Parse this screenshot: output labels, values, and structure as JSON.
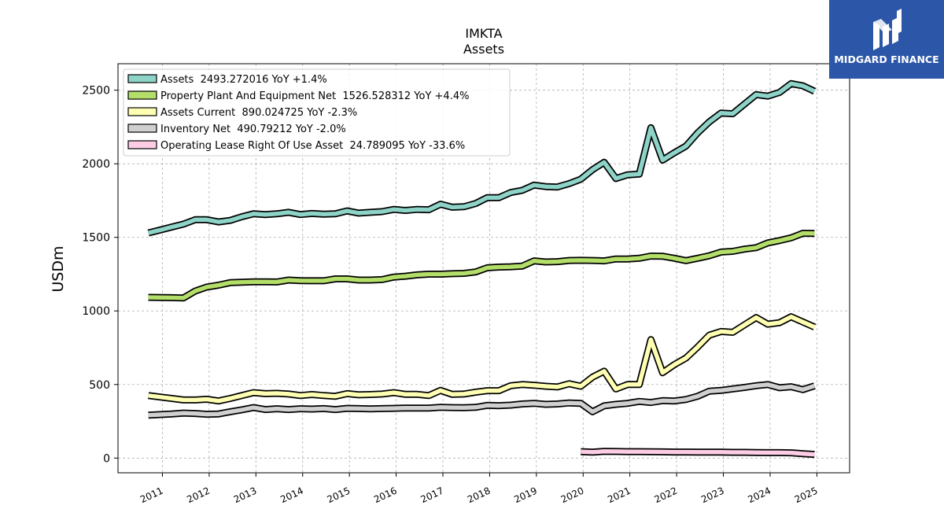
{
  "chart_data": {
    "type": "line",
    "title": "IMKTA",
    "subtitle": "Assets",
    "ylabel": "USDm",
    "xlabel": "",
    "ylim": [
      -100,
      2680
    ],
    "xlim": [
      2010.05,
      2025.7
    ],
    "yticks": [
      0,
      500,
      1000,
      1500,
      2000,
      2500
    ],
    "xticks": [
      "2011",
      "2012",
      "2013",
      "2014",
      "2015",
      "2016",
      "2017",
      "2018",
      "2019",
      "2020",
      "2021",
      "2022",
      "2023",
      "2024",
      "2025"
    ],
    "grid": true,
    "legend_position": "top-left",
    "series": [
      {
        "name": "Assets",
        "legend": "Assets  2493.272016 YoY +1.4%",
        "color": "#8dd3c7",
        "points": [
          [
            2010.7,
            1530
          ],
          [
            2010.95,
            1550
          ],
          [
            2011.2,
            1570
          ],
          [
            2011.45,
            1590
          ],
          [
            2011.7,
            1620
          ],
          [
            2011.95,
            1620
          ],
          [
            2012.2,
            1605
          ],
          [
            2012.45,
            1615
          ],
          [
            2012.7,
            1640
          ],
          [
            2012.95,
            1660
          ],
          [
            2013.2,
            1655
          ],
          [
            2013.45,
            1660
          ],
          [
            2013.7,
            1670
          ],
          [
            2013.95,
            1655
          ],
          [
            2014.2,
            1662
          ],
          [
            2014.45,
            1658
          ],
          [
            2014.7,
            1660
          ],
          [
            2014.95,
            1680
          ],
          [
            2015.2,
            1665
          ],
          [
            2015.45,
            1670
          ],
          [
            2015.7,
            1675
          ],
          [
            2015.95,
            1690
          ],
          [
            2016.2,
            1683
          ],
          [
            2016.45,
            1690
          ],
          [
            2016.7,
            1688
          ],
          [
            2016.95,
            1725
          ],
          [
            2017.2,
            1705
          ],
          [
            2017.45,
            1708
          ],
          [
            2017.7,
            1730
          ],
          [
            2017.95,
            1770
          ],
          [
            2018.2,
            1770
          ],
          [
            2018.45,
            1805
          ],
          [
            2018.7,
            1820
          ],
          [
            2018.95,
            1855
          ],
          [
            2019.2,
            1845
          ],
          [
            2019.45,
            1842
          ],
          [
            2019.7,
            1865
          ],
          [
            2019.95,
            1895
          ],
          [
            2020.2,
            1960
          ],
          [
            2020.45,
            2010
          ],
          [
            2020.7,
            1900
          ],
          [
            2020.95,
            1925
          ],
          [
            2021.2,
            1930
          ],
          [
            2021.45,
            2245
          ],
          [
            2021.7,
            2025
          ],
          [
            2021.95,
            2075
          ],
          [
            2022.2,
            2120
          ],
          [
            2022.45,
            2210
          ],
          [
            2022.7,
            2285
          ],
          [
            2022.95,
            2345
          ],
          [
            2023.2,
            2340
          ],
          [
            2023.45,
            2405
          ],
          [
            2023.7,
            2470
          ],
          [
            2023.95,
            2460
          ],
          [
            2024.2,
            2485
          ],
          [
            2024.45,
            2545
          ],
          [
            2024.7,
            2530
          ],
          [
            2024.95,
            2493
          ]
        ]
      },
      {
        "name": "Property Plant And Equipment Net",
        "legend": "Property Plant And Equipment Net  1526.528312 YoY +4.4%",
        "color": "#b3de69",
        "points": [
          [
            2010.7,
            1092
          ],
          [
            2011.2,
            1090
          ],
          [
            2011.45,
            1088
          ],
          [
            2011.7,
            1135
          ],
          [
            2011.95,
            1162
          ],
          [
            2012.2,
            1175
          ],
          [
            2012.45,
            1192
          ],
          [
            2012.7,
            1195
          ],
          [
            2012.95,
            1198
          ],
          [
            2013.2,
            1198
          ],
          [
            2013.45,
            1197
          ],
          [
            2013.7,
            1210
          ],
          [
            2013.95,
            1206
          ],
          [
            2014.2,
            1205
          ],
          [
            2014.45,
            1205
          ],
          [
            2014.7,
            1218
          ],
          [
            2014.95,
            1218
          ],
          [
            2015.2,
            1210
          ],
          [
            2015.45,
            1210
          ],
          [
            2015.7,
            1213
          ],
          [
            2015.95,
            1230
          ],
          [
            2016.2,
            1236
          ],
          [
            2016.45,
            1245
          ],
          [
            2016.7,
            1250
          ],
          [
            2016.95,
            1250
          ],
          [
            2017.2,
            1253
          ],
          [
            2017.45,
            1255
          ],
          [
            2017.7,
            1265
          ],
          [
            2017.95,
            1293
          ],
          [
            2018.2,
            1298
          ],
          [
            2018.45,
            1300
          ],
          [
            2018.7,
            1305
          ],
          [
            2018.95,
            1340
          ],
          [
            2019.2,
            1333
          ],
          [
            2019.45,
            1335
          ],
          [
            2019.7,
            1343
          ],
          [
            2019.95,
            1344
          ],
          [
            2020.2,
            1343
          ],
          [
            2020.45,
            1340
          ],
          [
            2020.7,
            1353
          ],
          [
            2020.95,
            1353
          ],
          [
            2021.2,
            1358
          ],
          [
            2021.45,
            1373
          ],
          [
            2021.7,
            1372
          ],
          [
            2021.95,
            1358
          ],
          [
            2022.2,
            1342
          ],
          [
            2022.45,
            1358
          ],
          [
            2022.7,
            1375
          ],
          [
            2022.95,
            1400
          ],
          [
            2023.2,
            1405
          ],
          [
            2023.45,
            1420
          ],
          [
            2023.7,
            1430
          ],
          [
            2023.95,
            1462
          ],
          [
            2024.2,
            1478
          ],
          [
            2024.45,
            1497
          ],
          [
            2024.7,
            1528
          ],
          [
            2024.95,
            1527
          ]
        ]
      },
      {
        "name": "Assets Current",
        "legend": "Assets Current  890.024725 YoY -2.3%",
        "color": "#ffffb3",
        "points": [
          [
            2010.7,
            425
          ],
          [
            2010.95,
            415
          ],
          [
            2011.2,
            405
          ],
          [
            2011.45,
            395
          ],
          [
            2011.7,
            395
          ],
          [
            2011.95,
            400
          ],
          [
            2012.2,
            388
          ],
          [
            2012.45,
            405
          ],
          [
            2012.7,
            425
          ],
          [
            2012.95,
            445
          ],
          [
            2013.2,
            438
          ],
          [
            2013.45,
            440
          ],
          [
            2013.7,
            435
          ],
          [
            2013.95,
            425
          ],
          [
            2014.2,
            432
          ],
          [
            2014.45,
            425
          ],
          [
            2014.7,
            420
          ],
          [
            2014.95,
            438
          ],
          [
            2015.2,
            430
          ],
          [
            2015.45,
            432
          ],
          [
            2015.7,
            435
          ],
          [
            2015.95,
            445
          ],
          [
            2016.2,
            433
          ],
          [
            2016.45,
            433
          ],
          [
            2016.7,
            425
          ],
          [
            2016.95,
            460
          ],
          [
            2017.2,
            433
          ],
          [
            2017.45,
            435
          ],
          [
            2017.7,
            448
          ],
          [
            2017.95,
            458
          ],
          [
            2018.2,
            458
          ],
          [
            2018.45,
            492
          ],
          [
            2018.7,
            500
          ],
          [
            2018.95,
            495
          ],
          [
            2019.2,
            488
          ],
          [
            2019.45,
            483
          ],
          [
            2019.7,
            505
          ],
          [
            2019.95,
            488
          ],
          [
            2020.2,
            550
          ],
          [
            2020.45,
            590
          ],
          [
            2020.7,
            470
          ],
          [
            2020.95,
            500
          ],
          [
            2021.2,
            500
          ],
          [
            2021.45,
            805
          ],
          [
            2021.7,
            580
          ],
          [
            2021.95,
            635
          ],
          [
            2022.2,
            680
          ],
          [
            2022.45,
            755
          ],
          [
            2022.7,
            835
          ],
          [
            2022.95,
            860
          ],
          [
            2023.2,
            855
          ],
          [
            2023.45,
            905
          ],
          [
            2023.7,
            955
          ],
          [
            2023.95,
            910
          ],
          [
            2024.2,
            920
          ],
          [
            2024.45,
            960
          ],
          [
            2024.7,
            925
          ],
          [
            2024.95,
            890
          ]
        ]
      },
      {
        "name": "Inventory Net",
        "legend": "Inventory Net  490.79212 YoY -2.0%",
        "color": "#d0d0d0",
        "points": [
          [
            2010.7,
            292
          ],
          [
            2011.2,
            300
          ],
          [
            2011.45,
            306
          ],
          [
            2011.7,
            303
          ],
          [
            2011.95,
            298
          ],
          [
            2012.2,
            300
          ],
          [
            2012.45,
            315
          ],
          [
            2012.7,
            328
          ],
          [
            2012.95,
            343
          ],
          [
            2013.2,
            330
          ],
          [
            2013.45,
            335
          ],
          [
            2013.7,
            330
          ],
          [
            2013.95,
            335
          ],
          [
            2014.2,
            333
          ],
          [
            2014.45,
            336
          ],
          [
            2014.7,
            330
          ],
          [
            2014.95,
            338
          ],
          [
            2015.2,
            336
          ],
          [
            2015.45,
            334
          ],
          [
            2015.7,
            336
          ],
          [
            2015.95,
            338
          ],
          [
            2016.2,
            340
          ],
          [
            2016.45,
            340
          ],
          [
            2016.7,
            340
          ],
          [
            2016.95,
            345
          ],
          [
            2017.2,
            343
          ],
          [
            2017.45,
            342
          ],
          [
            2017.7,
            345
          ],
          [
            2017.95,
            358
          ],
          [
            2018.2,
            356
          ],
          [
            2018.45,
            360
          ],
          [
            2018.7,
            368
          ],
          [
            2018.95,
            372
          ],
          [
            2019.2,
            365
          ],
          [
            2019.45,
            368
          ],
          [
            2019.7,
            375
          ],
          [
            2019.95,
            372
          ],
          [
            2020.2,
            315
          ],
          [
            2020.45,
            355
          ],
          [
            2020.7,
            365
          ],
          [
            2020.95,
            372
          ],
          [
            2021.2,
            385
          ],
          [
            2021.45,
            378
          ],
          [
            2021.7,
            390
          ],
          [
            2021.95,
            388
          ],
          [
            2022.2,
            398
          ],
          [
            2022.45,
            420
          ],
          [
            2022.7,
            455
          ],
          [
            2022.95,
            460
          ],
          [
            2023.2,
            470
          ],
          [
            2023.45,
            480
          ],
          [
            2023.7,
            492
          ],
          [
            2023.95,
            500
          ],
          [
            2024.2,
            478
          ],
          [
            2024.45,
            485
          ],
          [
            2024.7,
            465
          ],
          [
            2024.95,
            491
          ]
        ]
      },
      {
        "name": "Operating Lease Right Of Use Asset",
        "legend": "Operating Lease Right Of Use Asset  24.789095 YoY -33.6%",
        "color": "#fccde5",
        "points": [
          [
            2019.95,
            44
          ],
          [
            2020.2,
            40
          ],
          [
            2020.45,
            46
          ],
          [
            2020.7,
            45
          ],
          [
            2020.95,
            44
          ],
          [
            2021.2,
            44
          ],
          [
            2021.45,
            43
          ],
          [
            2021.7,
            42
          ],
          [
            2021.95,
            41
          ],
          [
            2022.2,
            41
          ],
          [
            2022.45,
            40
          ],
          [
            2022.7,
            40
          ],
          [
            2022.95,
            40
          ],
          [
            2023.2,
            39
          ],
          [
            2023.45,
            39
          ],
          [
            2023.7,
            38
          ],
          [
            2023.95,
            37
          ],
          [
            2024.2,
            37
          ],
          [
            2024.45,
            36
          ],
          [
            2024.7,
            30
          ],
          [
            2024.95,
            25
          ]
        ]
      }
    ]
  },
  "logo": {
    "text": "MIDGARD FINANCE",
    "background": "#2c56a8"
  }
}
